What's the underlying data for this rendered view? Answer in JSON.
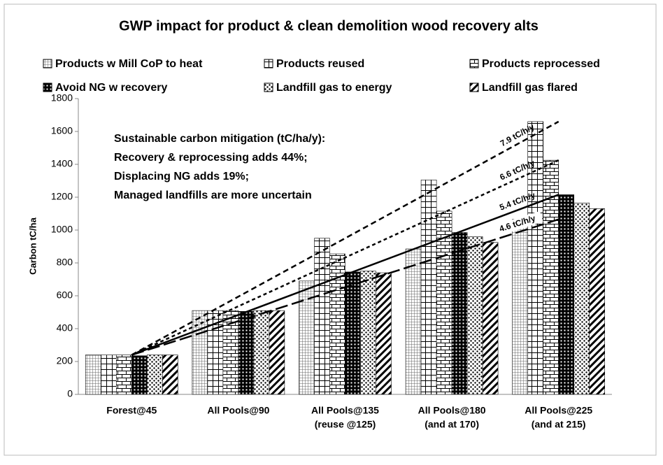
{
  "chart_data": {
    "type": "bar",
    "title": "GWP impact for product & clean demolition wood recovery alts",
    "y_label": "Carbon tC/ha",
    "categories": [
      [
        "Forest@45"
      ],
      [
        "All Pools@90"
      ],
      [
        "All Pools@135",
        "(reuse @125)"
      ],
      [
        "All Pools@180",
        "(and at 170)"
      ],
      [
        "All Pools@225",
        "(and at 215)"
      ]
    ],
    "series": [
      {
        "name": "Products w Mill CoP to heat",
        "color": "#000000",
        "pattern": "fine-grid",
        "values": [
          240,
          510,
          690,
          885,
          1065
        ]
      },
      {
        "name": "Products reused",
        "color": "#000000",
        "pattern": "grid",
        "values": [
          240,
          510,
          950,
          1305,
          1660
        ]
      },
      {
        "name": "Products reprocessed",
        "color": "#000000",
        "pattern": "brick",
        "values": [
          240,
          510,
          855,
          1115,
          1425
        ]
      },
      {
        "name": "Avoid NG w recovery",
        "color": "#000000",
        "pattern": "dark-grid",
        "values": [
          235,
          505,
          745,
          985,
          1215
        ]
      },
      {
        "name": "Landfill gas  to energy",
        "color": "#000000",
        "pattern": "dots",
        "values": [
          240,
          510,
          750,
          960,
          1165
        ]
      },
      {
        "name": "Landfill gas flared",
        "color": "#000000",
        "pattern": "diagonal",
        "values": [
          240,
          510,
          740,
          925,
          1130
        ]
      }
    ],
    "ylim": [
      0,
      1800
    ],
    "yticks": [
      0,
      200,
      400,
      600,
      800,
      1000,
      1200,
      1400,
      1600,
      1800
    ],
    "grid": false,
    "legend": "top",
    "trendlines": [
      {
        "label": "7.9 tC/h/y",
        "style": "short-dash",
        "start": 240,
        "end": 1660
      },
      {
        "label": "6.6 tC/h/y",
        "style": "dot-dash",
        "start": 240,
        "end": 1425
      },
      {
        "label": "5.4 tC/h/y",
        "style": "solid",
        "start": 240,
        "end": 1215
      },
      {
        "label": "4.6 tC/h/y",
        "style": "long-dash",
        "start": 240,
        "end": 1065
      }
    ],
    "annotation": [
      "Sustainable carbon mitigation (tC/ha/y):",
      "Recovery & reprocessing adds 44%;",
      "Displacing NG adds 19%;",
      "Managed landfills are more uncertain"
    ]
  }
}
